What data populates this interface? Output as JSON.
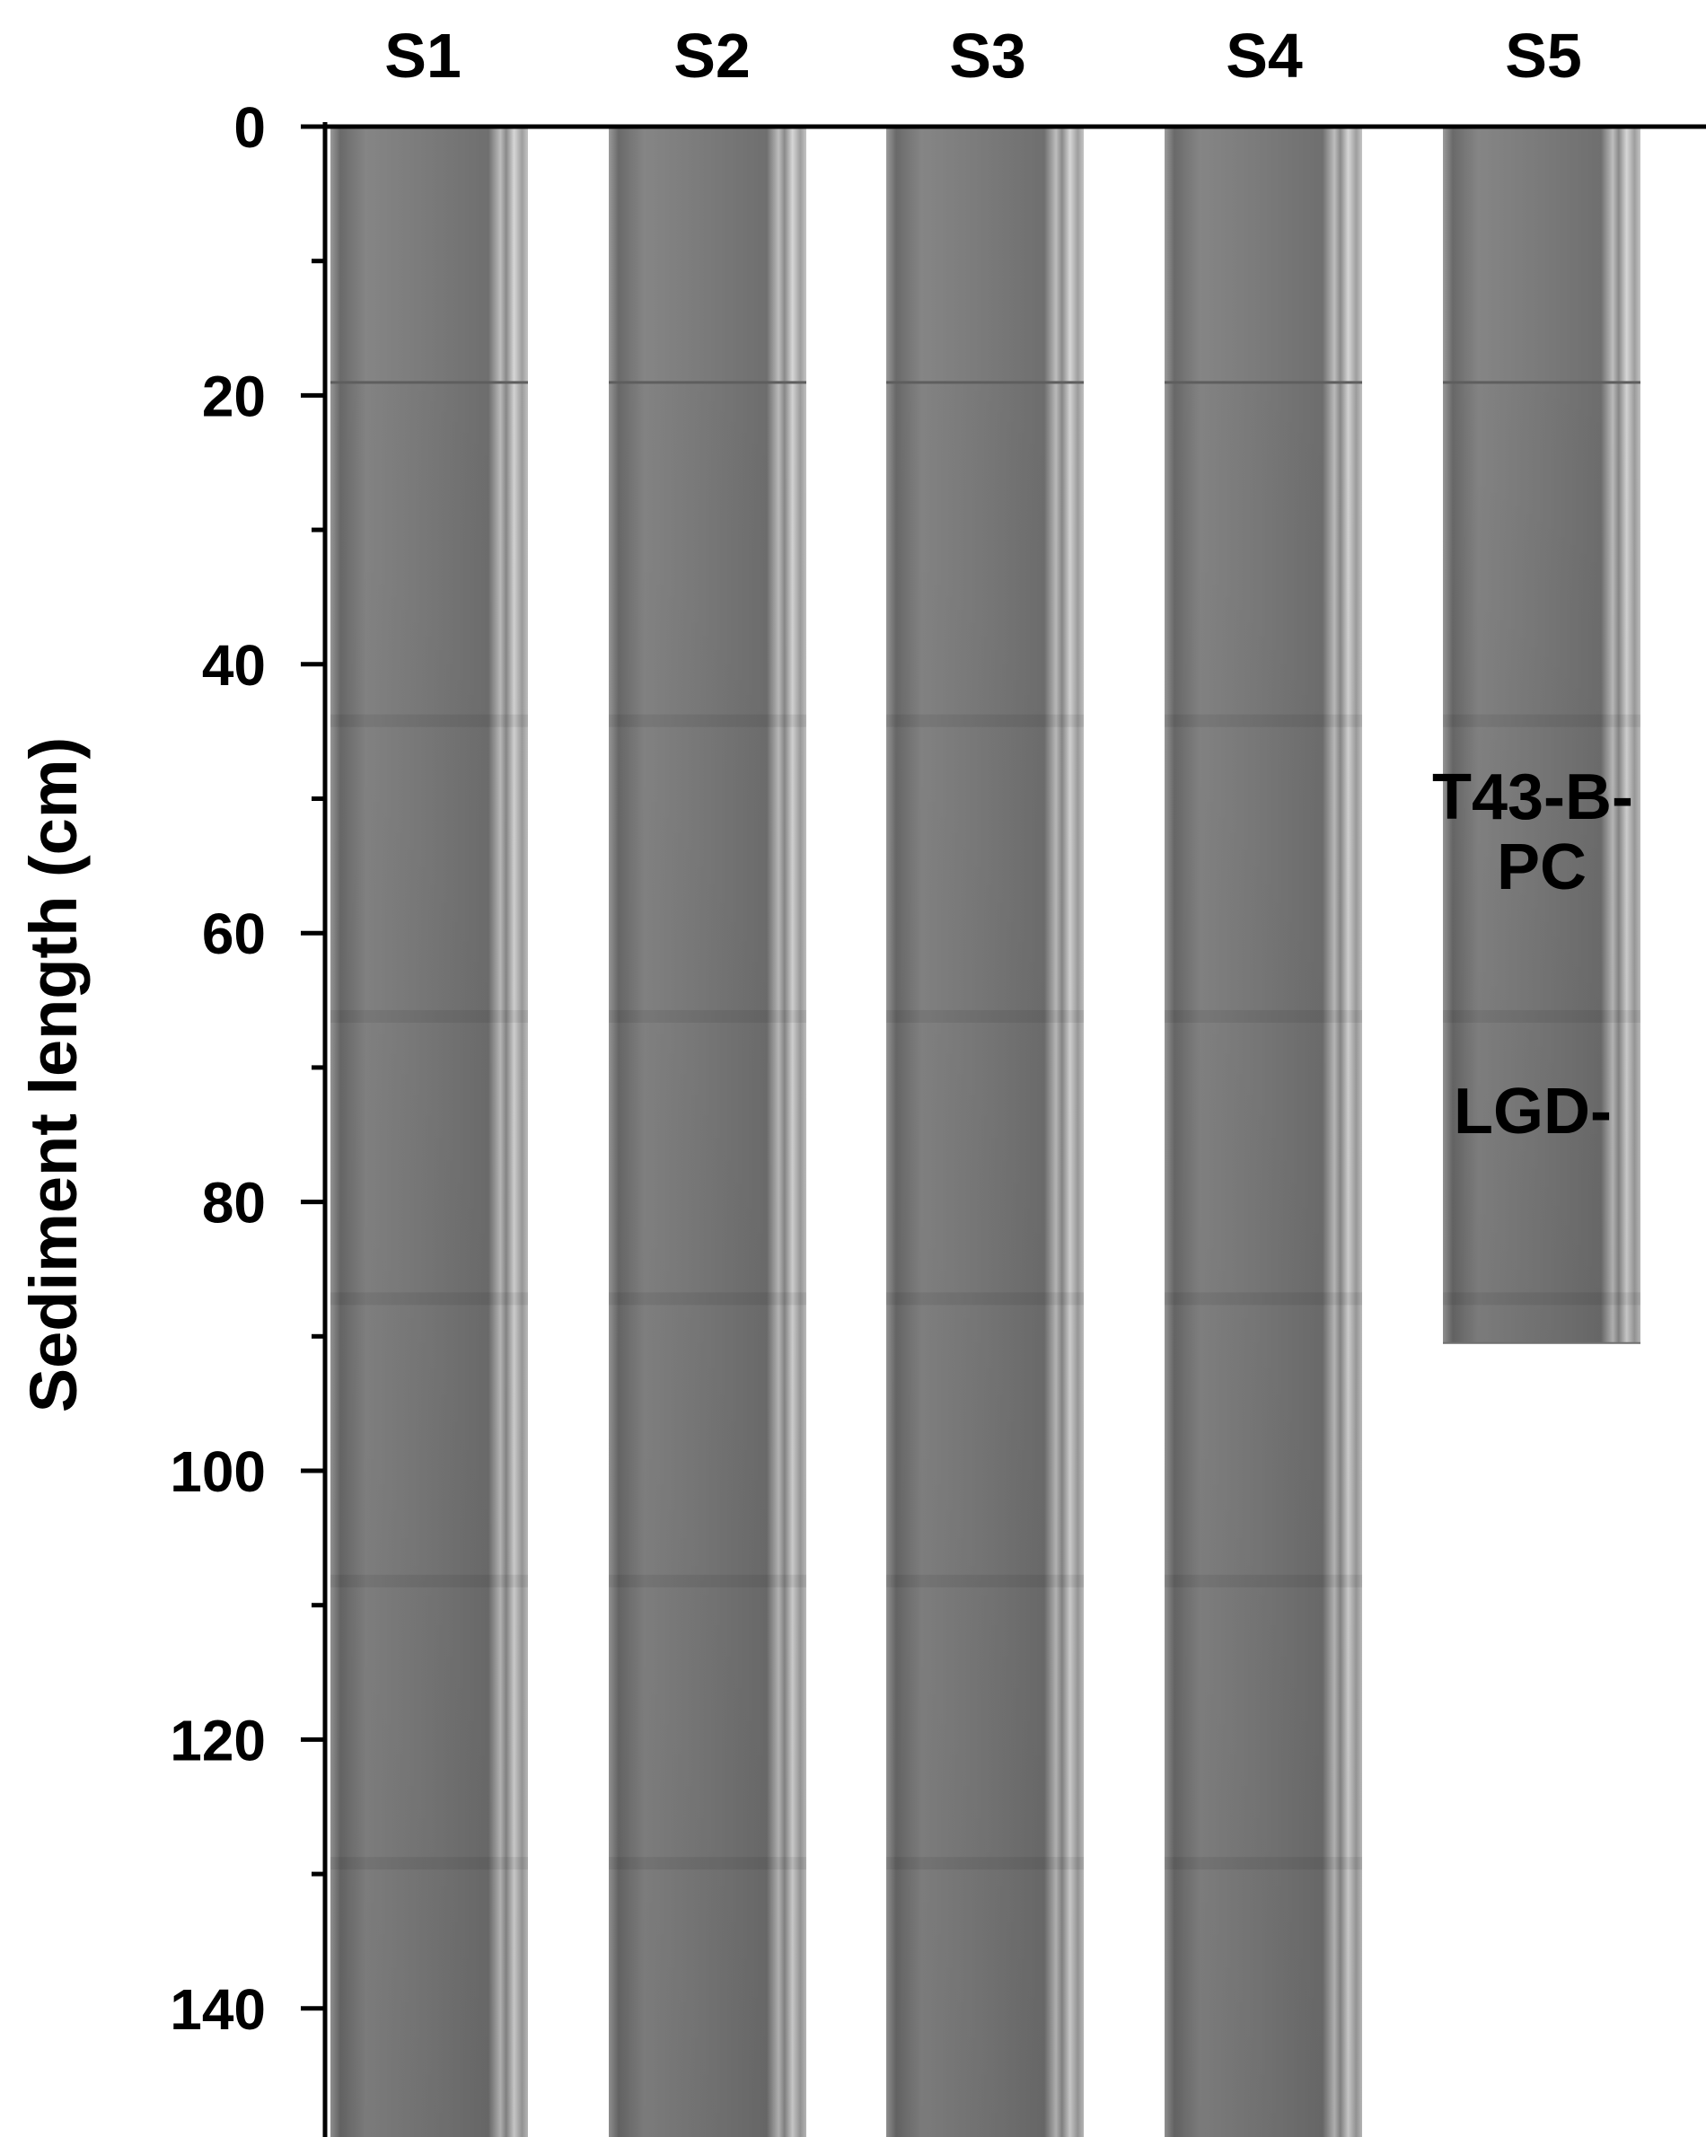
{
  "figure": {
    "y_axis": {
      "label": "Sediment length (cm)",
      "min": 0,
      "max": 150,
      "major_ticks": [
        0,
        20,
        40,
        60,
        80,
        100,
        120,
        140
      ],
      "minor_step": 10
    },
    "core_label_lines": [
      "LGD-",
      "T43-B-",
      "PC"
    ],
    "sections": [
      {
        "name": "S1",
        "length_cm": 150,
        "extends_beyond_view": true
      },
      {
        "name": "S2",
        "length_cm": 150,
        "extends_beyond_view": true
      },
      {
        "name": "S3",
        "length_cm": 150,
        "extends_beyond_view": true
      },
      {
        "name": "S4",
        "length_cm": 150,
        "extends_beyond_view": true
      },
      {
        "name": "S5",
        "length_cm": 90.5,
        "extends_beyond_view": false
      }
    ],
    "marker_depths_cm": [
      19,
      44,
      66,
      87,
      108,
      129
    ],
    "colors": {
      "core_base": "#7d7d7d",
      "core_dark": "#5e5e5e",
      "core_light": "#cfcfcf",
      "axis": "#000000",
      "background": "#ffffff"
    }
  }
}
